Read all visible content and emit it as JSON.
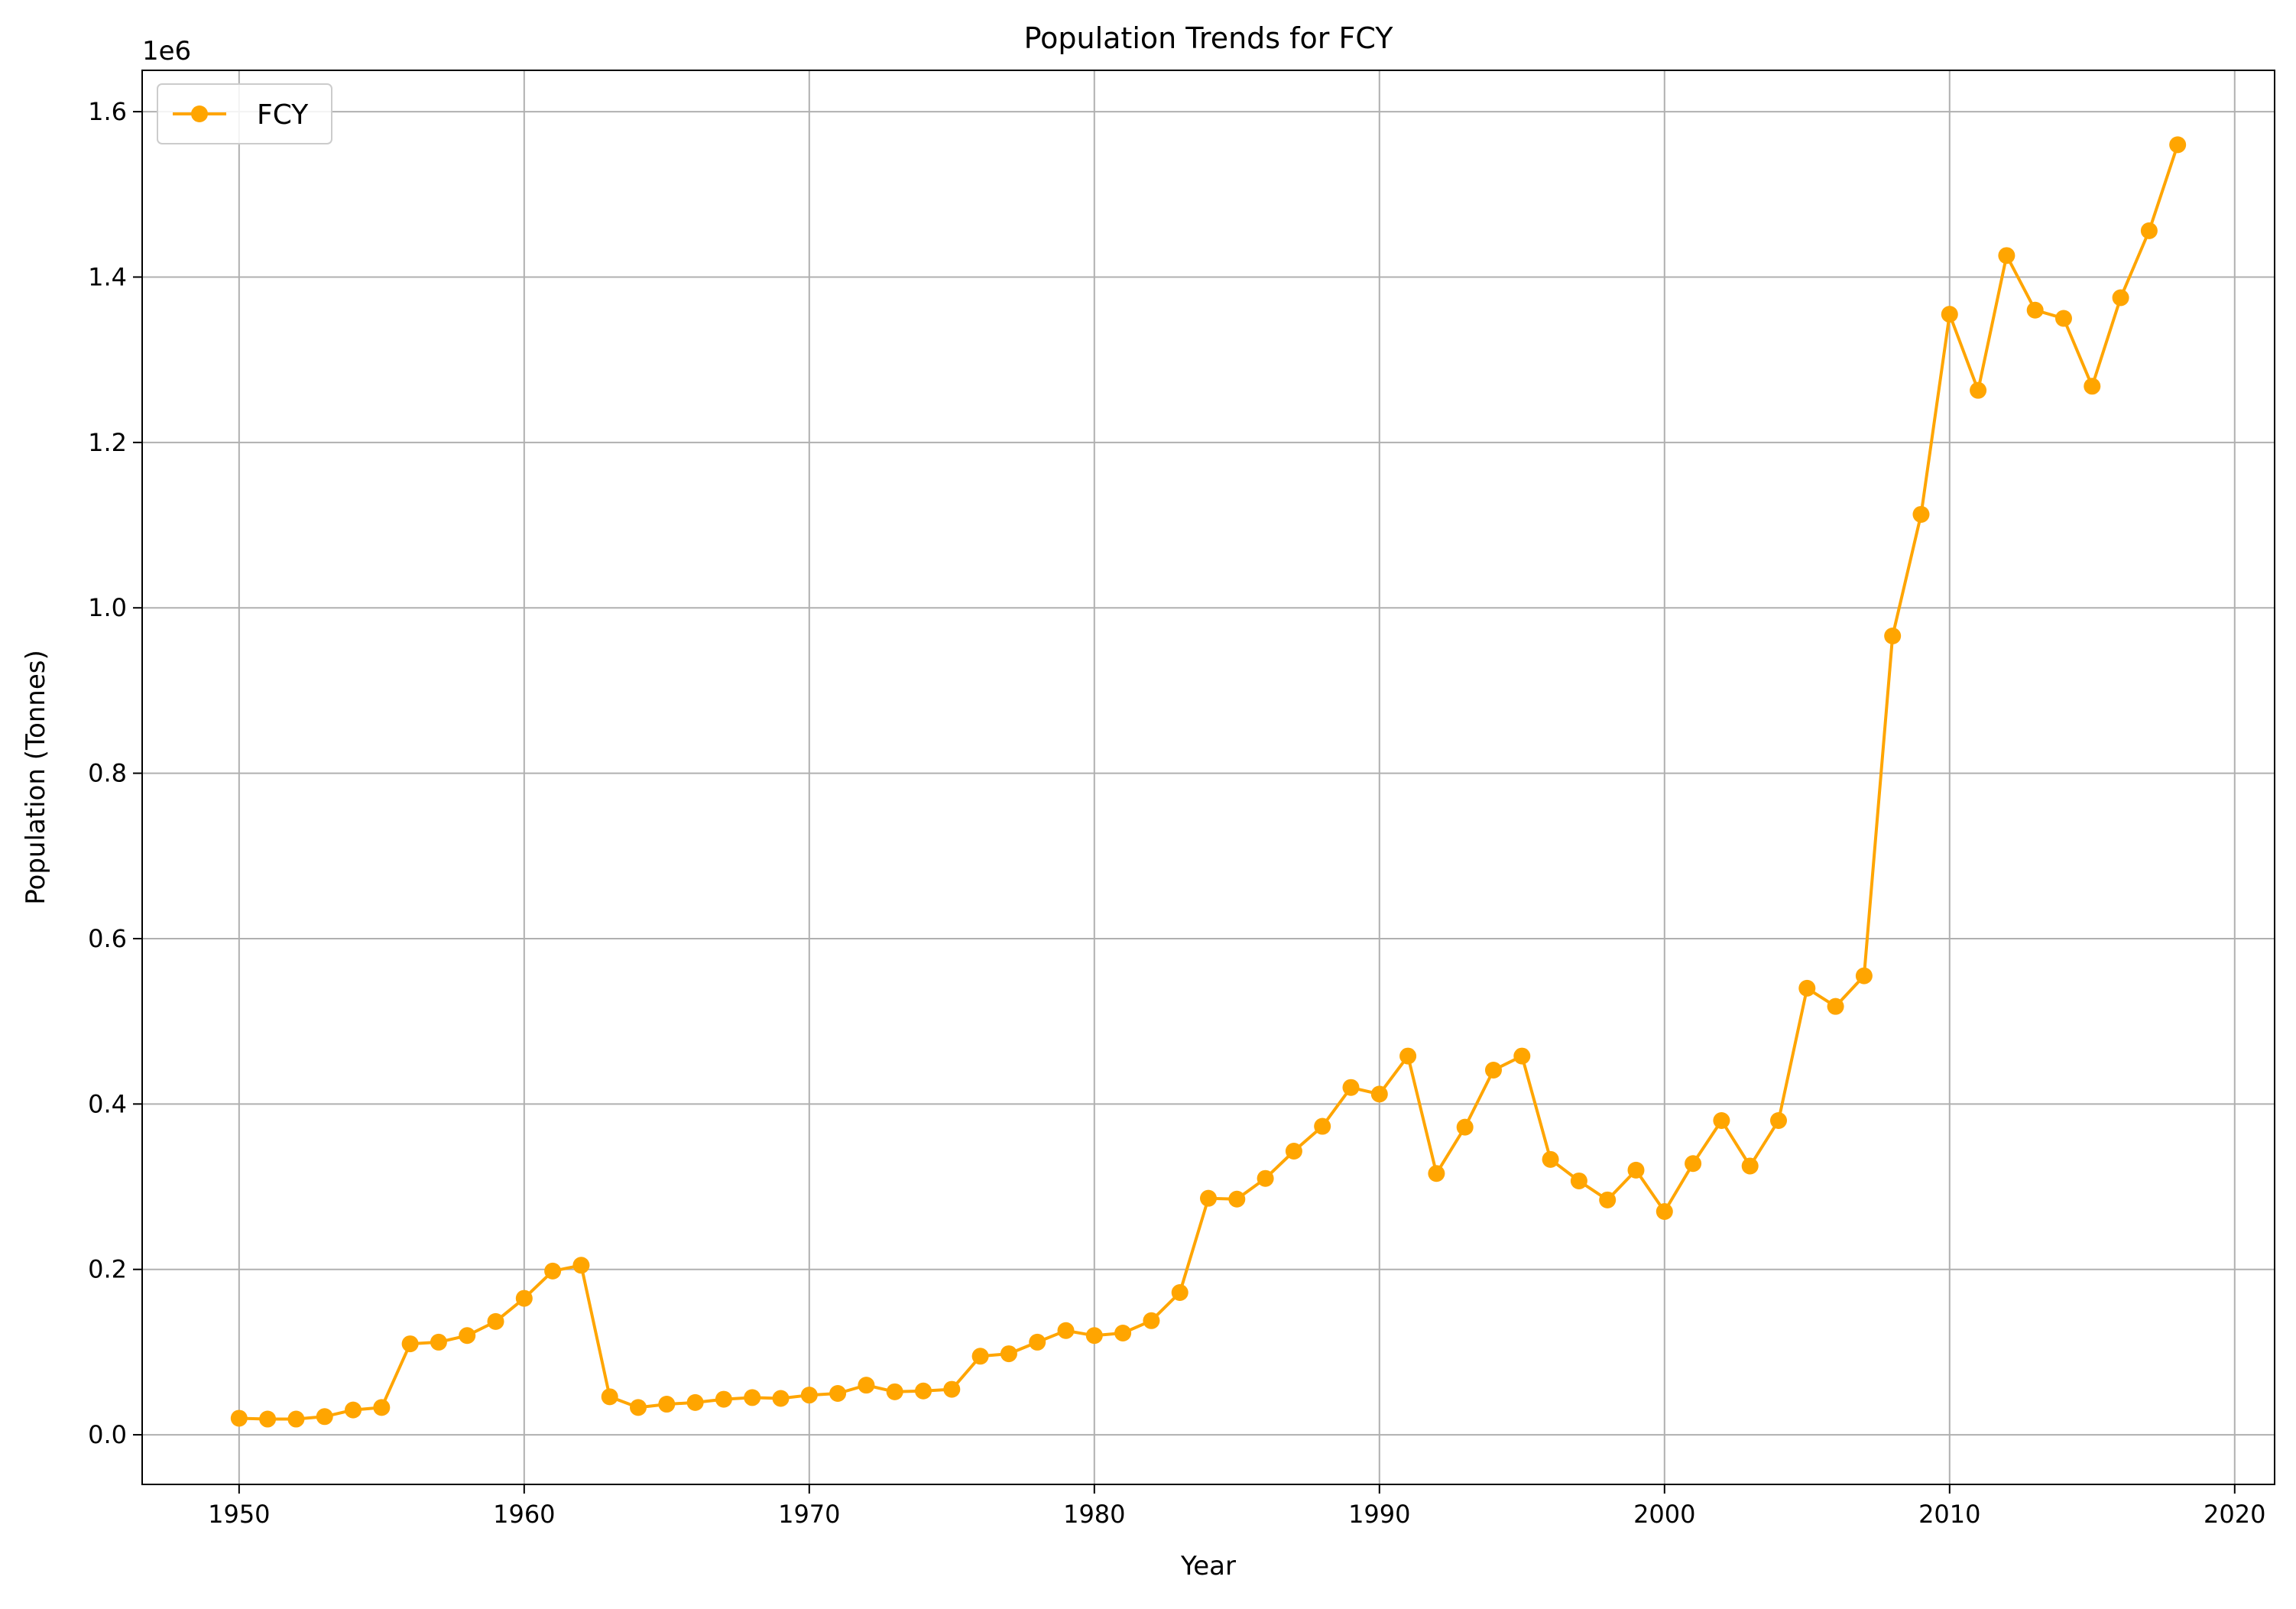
{
  "chart_data": {
    "type": "line",
    "title": "Population Trends for FCY",
    "xlabel": "Year",
    "ylabel": "Population (Tonnes)",
    "y_offset_label": "1e6",
    "xlim": [
      1946.6,
      2021.4
    ],
    "ylim": [
      -0.06,
      1.65
    ],
    "grid": true,
    "legend_position": "top-left",
    "x_ticks": [
      1950,
      1960,
      1970,
      1980,
      1990,
      2000,
      2010,
      2020
    ],
    "x_tick_labels": [
      "1950",
      "1960",
      "1970",
      "1980",
      "1990",
      "2000",
      "2010",
      "2020"
    ],
    "y_ticks": [
      0.0,
      0.2,
      0.4,
      0.6,
      0.8,
      1.0,
      1.2,
      1.4,
      1.6
    ],
    "y_tick_labels": [
      "0.0",
      "0.2",
      "0.4",
      "0.6",
      "0.8",
      "1.0",
      "1.2",
      "1.4",
      "1.6"
    ],
    "series": [
      {
        "name": "FCY",
        "color": "#FFA500",
        "marker": "circle",
        "x": [
          1950,
          1951,
          1952,
          1953,
          1954,
          1955,
          1956,
          1957,
          1958,
          1959,
          1960,
          1961,
          1962,
          1963,
          1964,
          1965,
          1966,
          1967,
          1968,
          1969,
          1970,
          1971,
          1972,
          1973,
          1974,
          1975,
          1976,
          1977,
          1978,
          1979,
          1980,
          1981,
          1982,
          1983,
          1984,
          1985,
          1986,
          1987,
          1988,
          1989,
          1990,
          1991,
          1992,
          1993,
          1994,
          1995,
          1996,
          1997,
          1998,
          1999,
          2000,
          2001,
          2002,
          2003,
          2004,
          2005,
          2006,
          2007,
          2008,
          2009,
          2010,
          2011,
          2012,
          2013,
          2014,
          2015,
          2016,
          2017,
          2018
        ],
        "values": [
          0.02,
          0.019,
          0.019,
          0.022,
          0.03,
          0.033,
          0.11,
          0.112,
          0.12,
          0.137,
          0.165,
          0.198,
          0.205,
          0.046,
          0.033,
          0.037,
          0.039,
          0.043,
          0.045,
          0.044,
          0.048,
          0.05,
          0.06,
          0.052,
          0.053,
          0.055,
          0.095,
          0.098,
          0.112,
          0.126,
          0.12,
          0.123,
          0.138,
          0.172,
          0.286,
          0.285,
          0.31,
          0.343,
          0.373,
          0.42,
          0.412,
          0.458,
          0.316,
          0.372,
          0.441,
          0.458,
          0.333,
          0.307,
          0.284,
          0.32,
          0.27,
          0.328,
          0.38,
          0.325,
          0.38,
          0.54,
          0.518,
          0.555,
          0.966,
          1.113,
          1.355,
          1.263,
          1.426,
          1.36,
          1.35,
          1.268,
          1.375,
          1.456,
          1.56
        ]
      }
    ]
  }
}
